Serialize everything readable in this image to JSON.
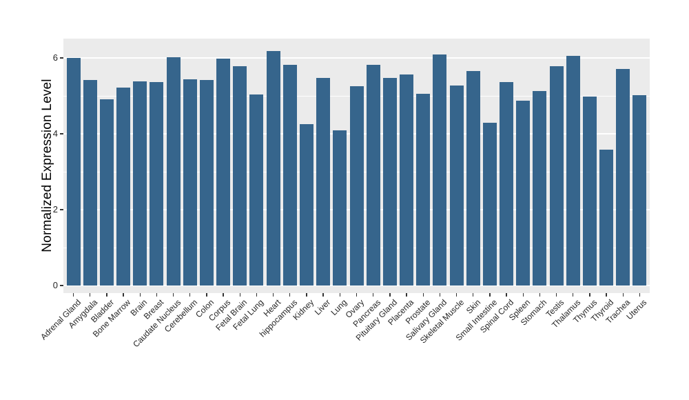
{
  "figure": {
    "background": "#FFFFFF"
  },
  "chart_data": {
    "type": "bar",
    "title": "",
    "xlabel": "",
    "ylabel": "Normalized Expression Level",
    "categories": [
      "Adrenal Gland",
      "Amygdala",
      "Bladder",
      "Bone Marrow",
      "Brain",
      "Breast",
      "Caudate Nucleus",
      "Cerebellum",
      "Colon",
      "Corpus",
      "Fetal Brain",
      "Fetal Lung",
      "Heart",
      "hippocampus",
      "Kidney",
      "Liver",
      "Lung",
      "Ovary",
      "Pancreas",
      "Pituitary Gland",
      "Placenta",
      "Prostate",
      "Salivary Gland",
      "Skeletal Muscle",
      "Skin",
      "Small Intestine",
      "Spinal Cord",
      "Spleen",
      "Stomach",
      "Testis",
      "Thalamus",
      "Thymus",
      "Thyroid",
      "Trachea",
      "Uterus"
    ],
    "values": [
      6.0,
      5.41,
      4.91,
      5.21,
      5.39,
      5.36,
      6.02,
      5.44,
      5.42,
      5.99,
      5.78,
      5.04,
      6.18,
      5.81,
      4.25,
      5.47,
      4.09,
      5.25,
      5.82,
      5.48,
      5.56,
      5.06,
      6.1,
      5.28,
      5.65,
      4.3,
      5.37,
      4.87,
      5.13,
      5.79,
      6.06,
      4.98,
      3.59,
      5.71,
      5.01
    ],
    "ylim": [
      0,
      6.5
    ],
    "yticks": [
      0,
      2,
      4,
      6
    ],
    "minor_gridlines": [
      1,
      3,
      5
    ],
    "grid": "on",
    "legend": "none",
    "bar_color": "#36658C",
    "panel_background": "#EBEBEB",
    "gridline_color": "#FFFFFF",
    "tick_label_color": "#262626",
    "axis_title_color": "#000000"
  }
}
